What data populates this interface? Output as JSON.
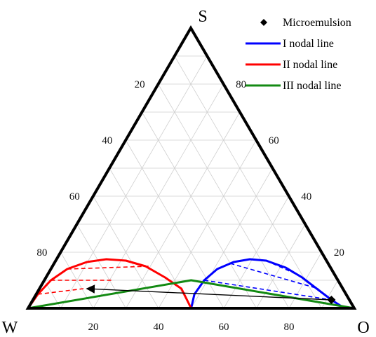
{
  "chart_data": {
    "type": "ternary",
    "vertices": {
      "top": "S",
      "left": "W",
      "right": "O"
    },
    "grid": true,
    "grid_step": 10,
    "ticks": {
      "bottom": [
        "20",
        "40",
        "60",
        "80"
      ],
      "left": [
        "20",
        "40",
        "60",
        "80"
      ],
      "right": [
        "20",
        "40",
        "60",
        "80"
      ]
    },
    "legend": {
      "placement": "top-right",
      "items": [
        {
          "label": "Microemulsion",
          "color": "#000000",
          "marker": "diamond"
        },
        {
          "label": "I nodal line",
          "color": "#0000ff",
          "marker": "line"
        },
        {
          "label": "II nodal line",
          "color": "#ff0000",
          "marker": "line"
        },
        {
          "label": "III nodal line",
          "color": "#138a13",
          "marker": "line"
        }
      ]
    },
    "series": [
      {
        "name": "I nodal line",
        "color": "#0000ff",
        "binodal": [
          [
            50,
            0
          ],
          [
            51,
            5
          ],
          [
            54,
            10
          ],
          [
            58,
            14
          ],
          [
            63,
            16.5
          ],
          [
            68,
            17.5
          ],
          [
            73,
            17
          ],
          [
            79,
            14.5
          ],
          [
            84,
            11
          ],
          [
            88.5,
            7
          ],
          [
            93,
            3
          ],
          [
            97,
            0
          ]
        ],
        "tie_lines": [
          [
            [
              54,
              10
            ],
            [
              93,
              3
            ]
          ],
          [
            [
              62,
              16
            ],
            [
              89,
              7
            ]
          ],
          [
            [
              73,
              17
            ],
            [
              84.5,
              11
            ]
          ]
        ]
      },
      {
        "name": "II nodal line",
        "color": "#ff0000",
        "binodal": [
          [
            0,
            0
          ],
          [
            3,
            5
          ],
          [
            7,
            10
          ],
          [
            12,
            14
          ],
          [
            18,
            16.5
          ],
          [
            24,
            17.5
          ],
          [
            30,
            17
          ],
          [
            36,
            15
          ],
          [
            42,
            11
          ],
          [
            47,
            7
          ],
          [
            50,
            0
          ]
        ],
        "tie_lines": [
          [
            [
              3,
              5
            ],
            [
              17,
              7
            ]
          ],
          [
            [
              7,
              10
            ],
            [
              26,
              10
            ]
          ],
          [
            [
              12,
              14
            ],
            [
              37,
              15
            ]
          ]
        ]
      },
      {
        "name": "III nodal line",
        "color": "#138a13",
        "triangle": [
          [
            0,
            0
          ],
          [
            50,
            10
          ],
          [
            100,
            0
          ]
        ]
      }
    ],
    "microemulsion_point": [
      93,
      3
    ],
    "arrow": {
      "from": [
        93,
        3
      ],
      "to": [
        18,
        7
      ]
    }
  }
}
